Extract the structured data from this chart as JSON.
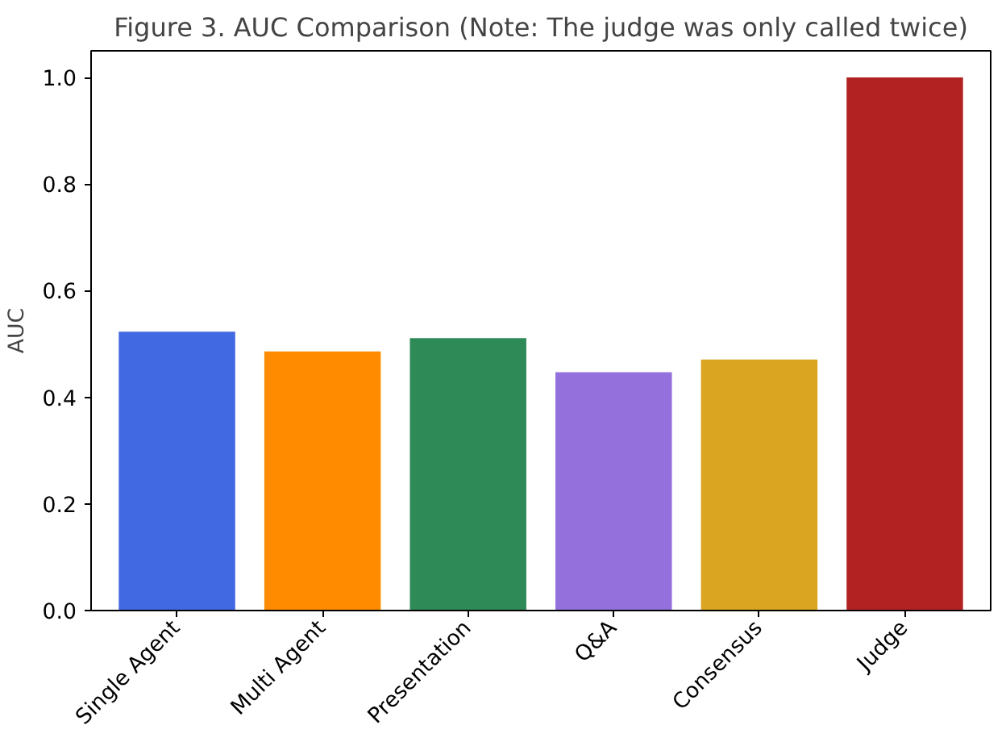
{
  "chart_data": {
    "type": "bar",
    "title": "Figure 3. AUC Comparison (Note: The judge was only called twice)",
    "ylabel": "AUC",
    "categories": [
      "Single Agent",
      "Multi Agent",
      "Presentation",
      "Q&A",
      "Consensus",
      "Judge"
    ],
    "values": [
      0.523,
      0.486,
      0.511,
      0.447,
      0.471,
      1.0
    ],
    "colors": [
      "#4169e1",
      "#ff8c00",
      "#2e8b57",
      "#9370db",
      "#daa520",
      "#b22222"
    ],
    "ylim": [
      0,
      1.05
    ],
    "yticks": [
      {
        "value": 0,
        "label": "0.0"
      },
      0.2,
      0.4,
      0.6,
      0.8,
      {
        "value": 1,
        "label": "1.0"
      }
    ],
    "grid": false
  }
}
